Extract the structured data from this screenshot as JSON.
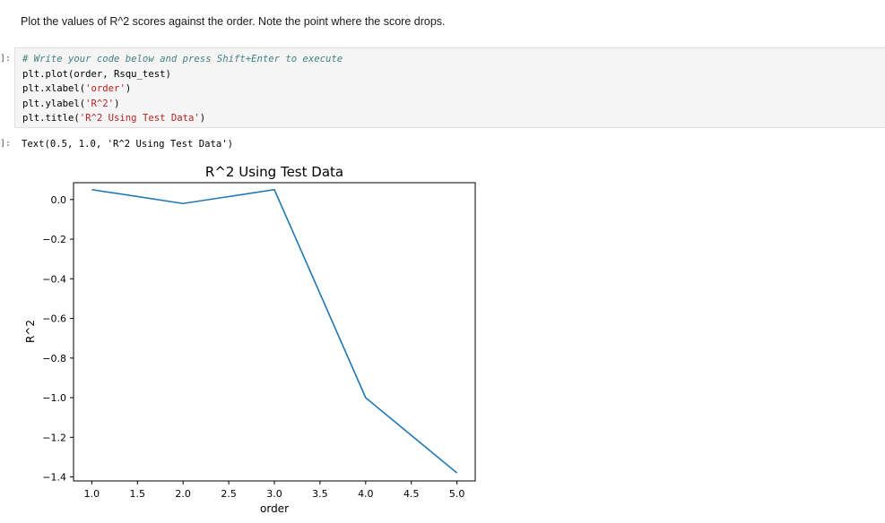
{
  "markdown": {
    "text": "Plot the values of R^2 scores against the order. Note the point where the score drops."
  },
  "code_cell": {
    "prompt": "]:",
    "comment": "# Write your code below and press Shift+Enter to execute",
    "lines": [
      {
        "pre": "plt.plot(order, Rsqu_test)",
        "str": "",
        "post": ""
      },
      {
        "pre": "plt.xlabel(",
        "str": "'order'",
        "post": ")"
      },
      {
        "pre": "plt.ylabel(",
        "str": "'R^2'",
        "post": ")"
      },
      {
        "pre": "plt.title(",
        "str": "'R^2 Using Test Data'",
        "post": ")"
      }
    ]
  },
  "output": {
    "prompt": "]:",
    "text": "Text(0.5, 1.0, 'R^2 Using Test Data')"
  },
  "chart_data": {
    "type": "line",
    "title": "R^2 Using Test Data",
    "xlabel": "order",
    "ylabel": "R^2",
    "x": [
      1,
      2,
      3,
      4,
      5
    ],
    "series": [
      {
        "values": [
          0.05,
          -0.02,
          0.05,
          -1.0,
          -1.38
        ],
        "color": "#1f77b4"
      }
    ],
    "xticks": [
      "1.0",
      "1.5",
      "2.0",
      "2.5",
      "3.0",
      "3.5",
      "4.0",
      "4.5",
      "5.0"
    ],
    "yticks": [
      "0.0",
      "−0.2",
      "−0.4",
      "−0.6",
      "−0.8",
      "−1.0",
      "−1.2",
      "−1.4"
    ],
    "xlim": [
      0.8,
      5.2
    ],
    "ylim": [
      -1.42,
      0.085
    ],
    "grid": false
  }
}
